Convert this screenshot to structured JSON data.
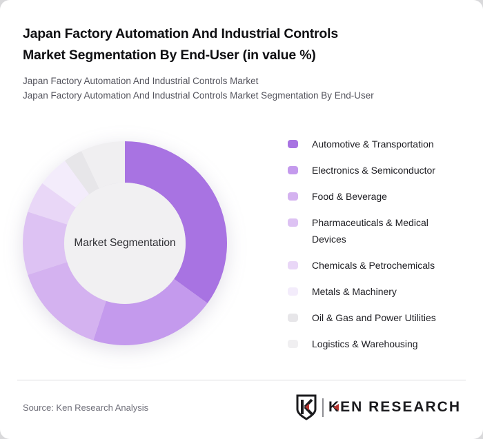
{
  "header": {
    "title_line1": "Japan Factory Automation And Industrial Controls",
    "title_line2": "Market Segmentation By End-User (in value %)",
    "subtitle_line1": "Japan Factory Automation And Industrial Controls Market",
    "subtitle_line2": "Japan Factory Automation And Industrial Controls Market Segmentation By End-User"
  },
  "chart_data": {
    "type": "pie",
    "variant": "donut",
    "title": "Japan Factory Automation And Industrial Controls Market Segmentation By End-User (in value %)",
    "unit": "value %",
    "center_label": "Market Segmentation",
    "legend_position": "right",
    "start_angle_deg": 0,
    "direction": "clockwise",
    "categories": [
      "Automotive & Transportation",
      "Electronics & Semiconductor",
      "Food & Beverage",
      "Pharmaceuticals & Medical Devices",
      "Chemicals & Petrochemicals",
      "Metals & Machinery",
      "Oil & Gas and Power Utilities",
      "Logistics & Warehousing"
    ],
    "values": [
      35,
      20,
      15,
      10,
      5,
      5,
      3,
      7
    ],
    "colors": [
      "#a873e2",
      "#c49aed",
      "#d4b2f0",
      "#ddc2f3",
      "#e9d7f7",
      "#f3ecfb",
      "#e7e6e9",
      "#f0eff1"
    ],
    "inner_hole_color": "#f1f0f2"
  },
  "footer": {
    "source": "Source: Ken Research Analysis",
    "logo": {
      "wordmark": "KEN RESEARCH",
      "badge_letter": "K",
      "accent_color": "#b5332e",
      "ink_color": "#1b1b1e"
    }
  }
}
